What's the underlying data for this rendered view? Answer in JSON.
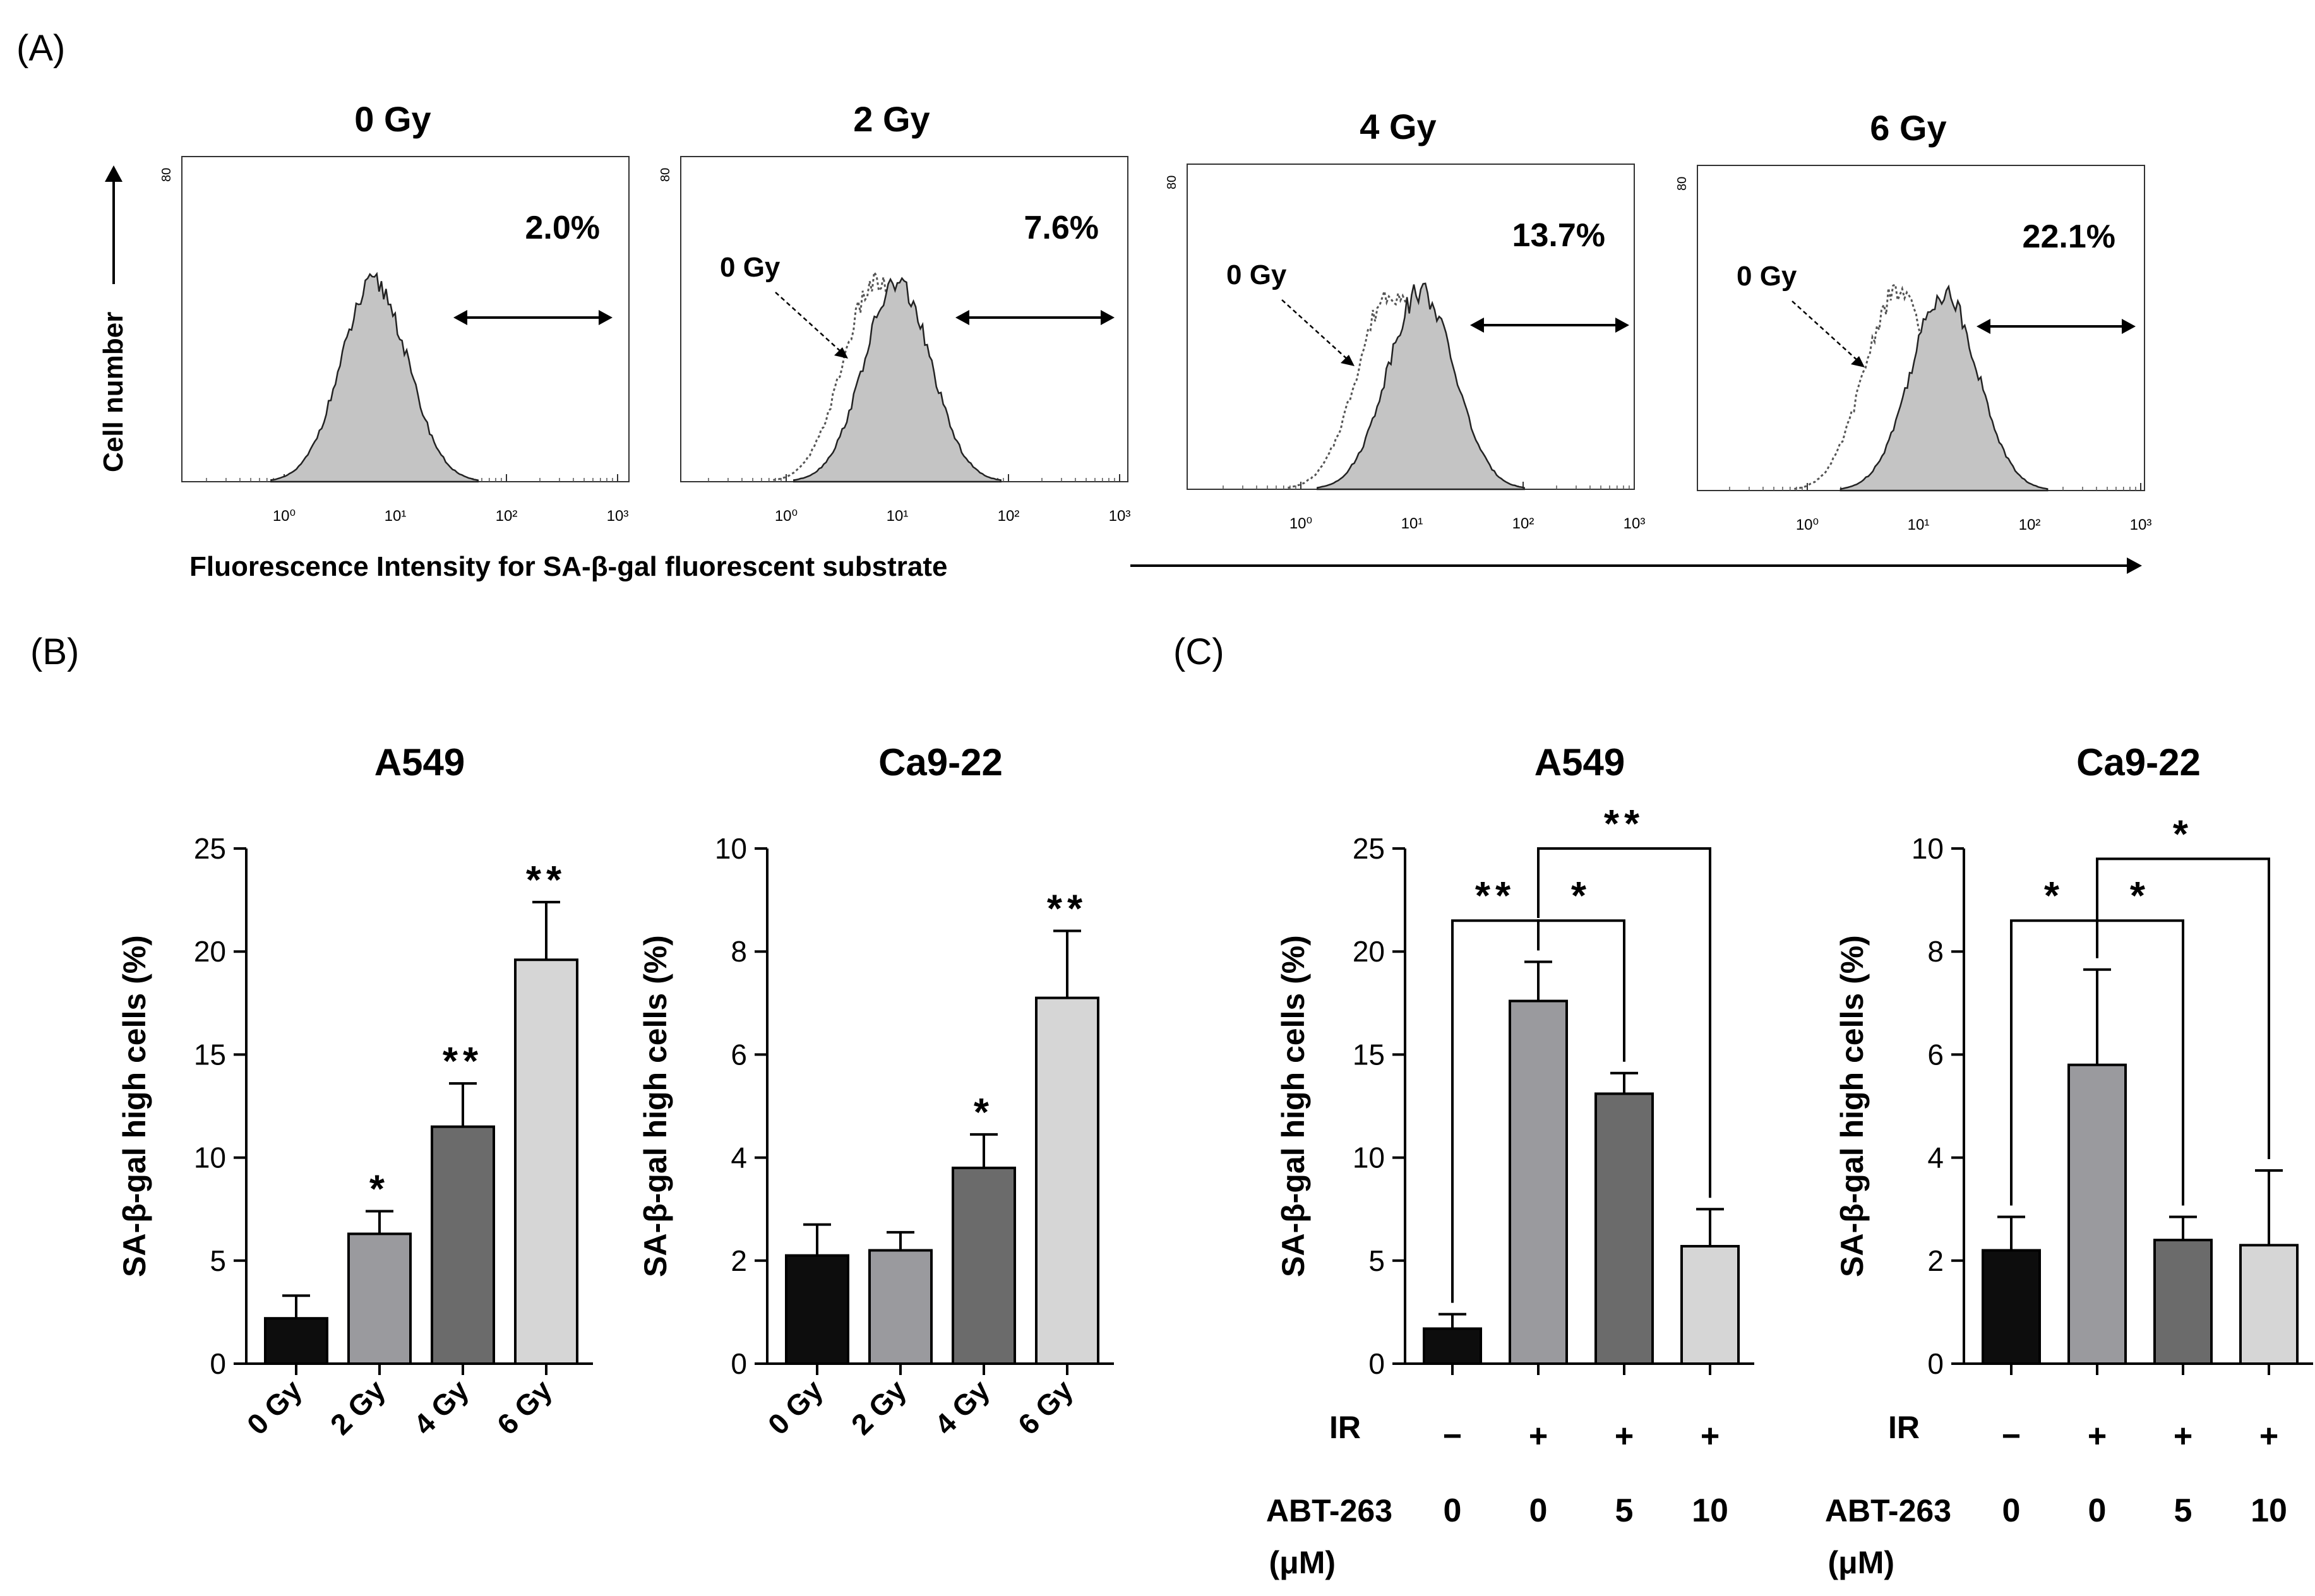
{
  "panel_letters": [
    "(A)",
    "(B)",
    "(C)"
  ],
  "panel_a": {
    "y_axis_label": "Cell number",
    "x_axis_label": "Fluorescence Intensity for SA-β-gal fluorescent substrate",
    "y_tick": "80",
    "x_ticks": [
      "10⁰",
      "10¹",
      "10²",
      "10³"
    ],
    "overlay_label": "0 Gy",
    "colors": {
      "histogram_fill": "#c4c4c4",
      "histogram_line": "#222222",
      "control_line": "#555555"
    }
  },
  "chart_data": [
    {
      "type": "histogram",
      "panel": "A",
      "title": "0 Gy",
      "percent_label": "2.0%",
      "x_scale": "log",
      "xlim": [
        0.1,
        1000
      ],
      "ylim": [
        0,
        80
      ],
      "peak_intensity": 6.5,
      "percent_high": 2.0,
      "overlay_control": false
    },
    {
      "type": "histogram",
      "panel": "A",
      "title": "2 Gy",
      "percent_label": "7.6%",
      "x_scale": "log",
      "xlim": [
        0.1,
        1000
      ],
      "ylim": [
        0,
        80
      ],
      "peak_intensity": 10,
      "percent_high": 7.6,
      "overlay_control": true
    },
    {
      "type": "histogram",
      "panel": "A",
      "title": "4 Gy",
      "percent_label": "13.7%",
      "x_scale": "log",
      "xlim": [
        0.1,
        1000
      ],
      "ylim": [
        0,
        80
      ],
      "peak_intensity": 12,
      "percent_high": 13.7,
      "overlay_control": true
    },
    {
      "type": "histogram",
      "panel": "A",
      "title": "6 Gy",
      "percent_label": "22.1%",
      "x_scale": "log",
      "xlim": [
        0.1,
        1000
      ],
      "ylim": [
        0,
        80
      ],
      "peak_intensity": 17,
      "percent_high": 22.1,
      "overlay_control": true
    },
    {
      "type": "bar",
      "panel": "B",
      "title": "A549",
      "ylabel": "SA-β-gal high cells (%)",
      "ylim": [
        0,
        25
      ],
      "yticks": [
        0,
        5,
        10,
        15,
        20,
        25
      ],
      "categories": [
        "0 Gy",
        "2 Gy",
        "4 Gy",
        "6 Gy"
      ],
      "values": [
        2.2,
        6.3,
        11.5,
        19.6
      ],
      "errors": [
        1.1,
        1.1,
        2.1,
        2.8
      ],
      "significance": [
        "",
        "*",
        "**",
        "**"
      ],
      "bar_colors": [
        "#0d0d0d",
        "#9a9a9e",
        "#6b6b6b",
        "#d6d6d6"
      ]
    },
    {
      "type": "bar",
      "panel": "B",
      "title": "Ca9-22",
      "ylabel": "SA-β-gal high cells (%)",
      "ylim": [
        0,
        10
      ],
      "yticks": [
        0,
        2,
        4,
        6,
        8,
        10
      ],
      "categories": [
        "0 Gy",
        "2 Gy",
        "4 Gy",
        "6 Gy"
      ],
      "values": [
        2.1,
        2.2,
        3.8,
        7.1
      ],
      "errors": [
        0.6,
        0.35,
        0.65,
        1.3
      ],
      "significance": [
        "",
        "",
        "*",
        "**"
      ],
      "bar_colors": [
        "#0d0d0d",
        "#9a9a9e",
        "#6b6b6b",
        "#d6d6d6"
      ]
    },
    {
      "type": "bar",
      "panel": "C",
      "title": "A549",
      "ylabel": "SA-β-gal high cells (%)",
      "ylim": [
        0,
        25
      ],
      "yticks": [
        0,
        5,
        10,
        15,
        20,
        25
      ],
      "row_labels": [
        "IR",
        "ABT-263",
        "(μM)"
      ],
      "ir_row": [
        "−",
        "+",
        "+",
        "+"
      ],
      "abt_row": [
        "0",
        "0",
        "5",
        "10"
      ],
      "values": [
        1.7,
        17.6,
        13.1,
        5.7
      ],
      "errors": [
        0.7,
        1.9,
        1.0,
        1.8
      ],
      "brackets": [
        {
          "from": 0,
          "to": 1,
          "label": "**",
          "level": 21.5
        },
        {
          "from": 1,
          "to": 2,
          "label": "*",
          "level": 21.5
        },
        {
          "from": 1,
          "to": 3,
          "label": "**",
          "level": 25.0
        }
      ],
      "bar_colors": [
        "#0d0d0d",
        "#9a9a9e",
        "#6b6b6b",
        "#d6d6d6"
      ]
    },
    {
      "type": "bar",
      "panel": "C",
      "title": "Ca9-22",
      "ylabel": "SA-β-gal high cells (%)",
      "ylim": [
        0,
        10
      ],
      "yticks": [
        0,
        2,
        4,
        6,
        8,
        10
      ],
      "row_labels": [
        "IR",
        "ABT-263",
        "(μM)"
      ],
      "ir_row": [
        "−",
        "+",
        "+",
        "+"
      ],
      "abt_row": [
        "0",
        "0",
        "5",
        "10"
      ],
      "values": [
        2.2,
        5.8,
        2.4,
        2.3
      ],
      "errors": [
        0.65,
        1.85,
        0.45,
        1.45
      ],
      "brackets": [
        {
          "from": 0,
          "to": 1,
          "label": "*",
          "level": 8.6
        },
        {
          "from": 1,
          "to": 2,
          "label": "*",
          "level": 8.6
        },
        {
          "from": 1,
          "to": 3,
          "label": "*",
          "level": 9.8
        }
      ],
      "bar_colors": [
        "#0d0d0d",
        "#9a9a9e",
        "#6b6b6b",
        "#d6d6d6"
      ]
    }
  ]
}
